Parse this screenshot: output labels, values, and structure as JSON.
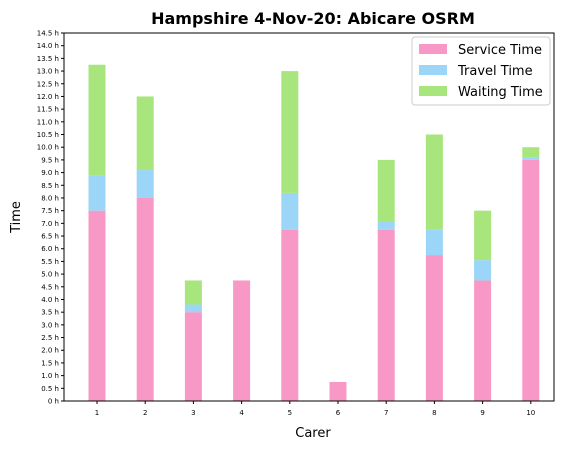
{
  "chart_data": {
    "type": "bar",
    "stacked": true,
    "title": "Hampshire 4-Nov-20: Abicare OSRM",
    "xlabel": "Carer",
    "ylabel": "Time",
    "categories": [
      "1",
      "2",
      "3",
      "4",
      "5",
      "6",
      "7",
      "8",
      "9",
      "10"
    ],
    "series": [
      {
        "name": "Service Time",
        "color": "#f898c6",
        "values": [
          7.5,
          8.0,
          3.5,
          4.75,
          6.75,
          0.75,
          6.75,
          5.75,
          4.75,
          9.5
        ]
      },
      {
        "name": "Travel Time",
        "color": "#9bd5f7",
        "values": [
          1.4,
          1.1,
          0.3,
          0.0,
          1.45,
          0.0,
          0.3,
          1.0,
          0.8,
          0.1
        ]
      },
      {
        "name": "Waiting Time",
        "color": "#a8e67d",
        "values": [
          4.35,
          2.9,
          0.95,
          0.0,
          4.8,
          0.0,
          2.45,
          3.75,
          1.95,
          0.4
        ]
      }
    ],
    "ylim": [
      0,
      14.5
    ],
    "yticks": [
      "0 h",
      "0.5 h",
      "1.0 h",
      "1.5 h",
      "2.0 h",
      "2.5 h",
      "3.0 h",
      "3.5 h",
      "4.0 h",
      "4.5 h",
      "5.0 h",
      "5.5 h",
      "6.0 h",
      "6.5 h",
      "7.0 h",
      "7.5 h",
      "8.0 h",
      "8.5 h",
      "9.0 h",
      "9.5 h",
      "10.0 h",
      "10.5 h",
      "11.0 h",
      "11.5 h",
      "12.0 h",
      "12.5 h",
      "13.0 h",
      "13.5 h",
      "14.0 h",
      "14.5 h"
    ],
    "legend_position": "top-right",
    "grid": false
  }
}
